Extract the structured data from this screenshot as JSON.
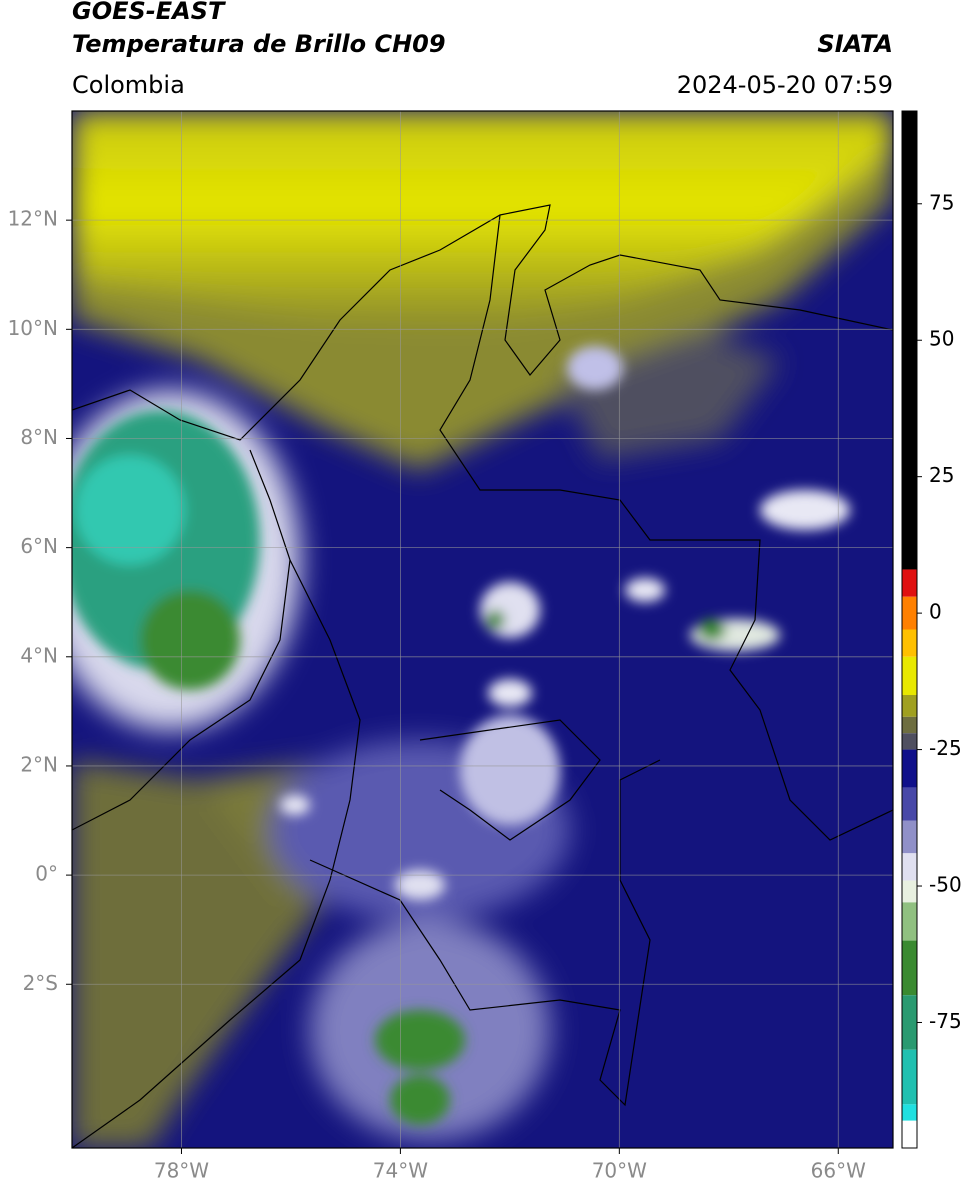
{
  "header": {
    "title": "GOES-EAST",
    "subtitle": "Temperatura de Brillo CH09",
    "region": "Colombia",
    "source": "SIATA",
    "datetime": "2024-05-20 07:59"
  },
  "map": {
    "xlim": [
      -80,
      -65
    ],
    "ylim": [
      -5,
      14
    ],
    "grid": true,
    "xticks": [
      {
        "value": -78,
        "label": "78°W"
      },
      {
        "value": -74,
        "label": "74°W"
      },
      {
        "value": -70,
        "label": "70°W"
      },
      {
        "value": -66,
        "label": "66°W"
      }
    ],
    "yticks": [
      {
        "value": 12,
        "label": "12°N"
      },
      {
        "value": 10,
        "label": "10°N"
      },
      {
        "value": 8,
        "label": "8°N"
      },
      {
        "value": 6,
        "label": "6°N"
      },
      {
        "value": 4,
        "label": "4°N"
      },
      {
        "value": 2,
        "label": "2°N"
      },
      {
        "value": 0,
        "label": "0°"
      },
      {
        "value": -2,
        "label": "2°S"
      }
    ]
  },
  "colorbar": {
    "lim": [
      -98,
      92
    ],
    "ticks": [
      75,
      50,
      25,
      0,
      -25,
      -50,
      -75
    ],
    "segments": [
      {
        "min": 8,
        "max": 92,
        "color": "#000000"
      },
      {
        "min": 3,
        "max": 8,
        "color": "#e01010"
      },
      {
        "min": -3,
        "max": 3,
        "color": "#ff8000"
      },
      {
        "min": -8,
        "max": -3,
        "color": "#ffc000"
      },
      {
        "min": -15,
        "max": -8,
        "color": "#e8e800"
      },
      {
        "min": -19,
        "max": -15,
        "color": "#a0a020"
      },
      {
        "min": -22,
        "max": -19,
        "color": "#6e6e40"
      },
      {
        "min": -25,
        "max": -22,
        "color": "#505060"
      },
      {
        "min": -32,
        "max": -25,
        "color": "#10108a"
      },
      {
        "min": -38,
        "max": -32,
        "color": "#4848a8"
      },
      {
        "min": -44,
        "max": -38,
        "color": "#9090c8"
      },
      {
        "min": -49,
        "max": -44,
        "color": "#e0e0f0"
      },
      {
        "min": -53,
        "max": -49,
        "color": "#e8f0e0"
      },
      {
        "min": -60,
        "max": -53,
        "color": "#90c080"
      },
      {
        "min": -70,
        "max": -60,
        "color": "#3a8a30"
      },
      {
        "min": -80,
        "max": -70,
        "color": "#2a9a70"
      },
      {
        "min": -90,
        "max": -80,
        "color": "#20c0b0"
      },
      {
        "min": -93,
        "max": -90,
        "color": "#20e0e0"
      },
      {
        "min": -98,
        "max": -93,
        "color": "#ffffff"
      }
    ]
  }
}
